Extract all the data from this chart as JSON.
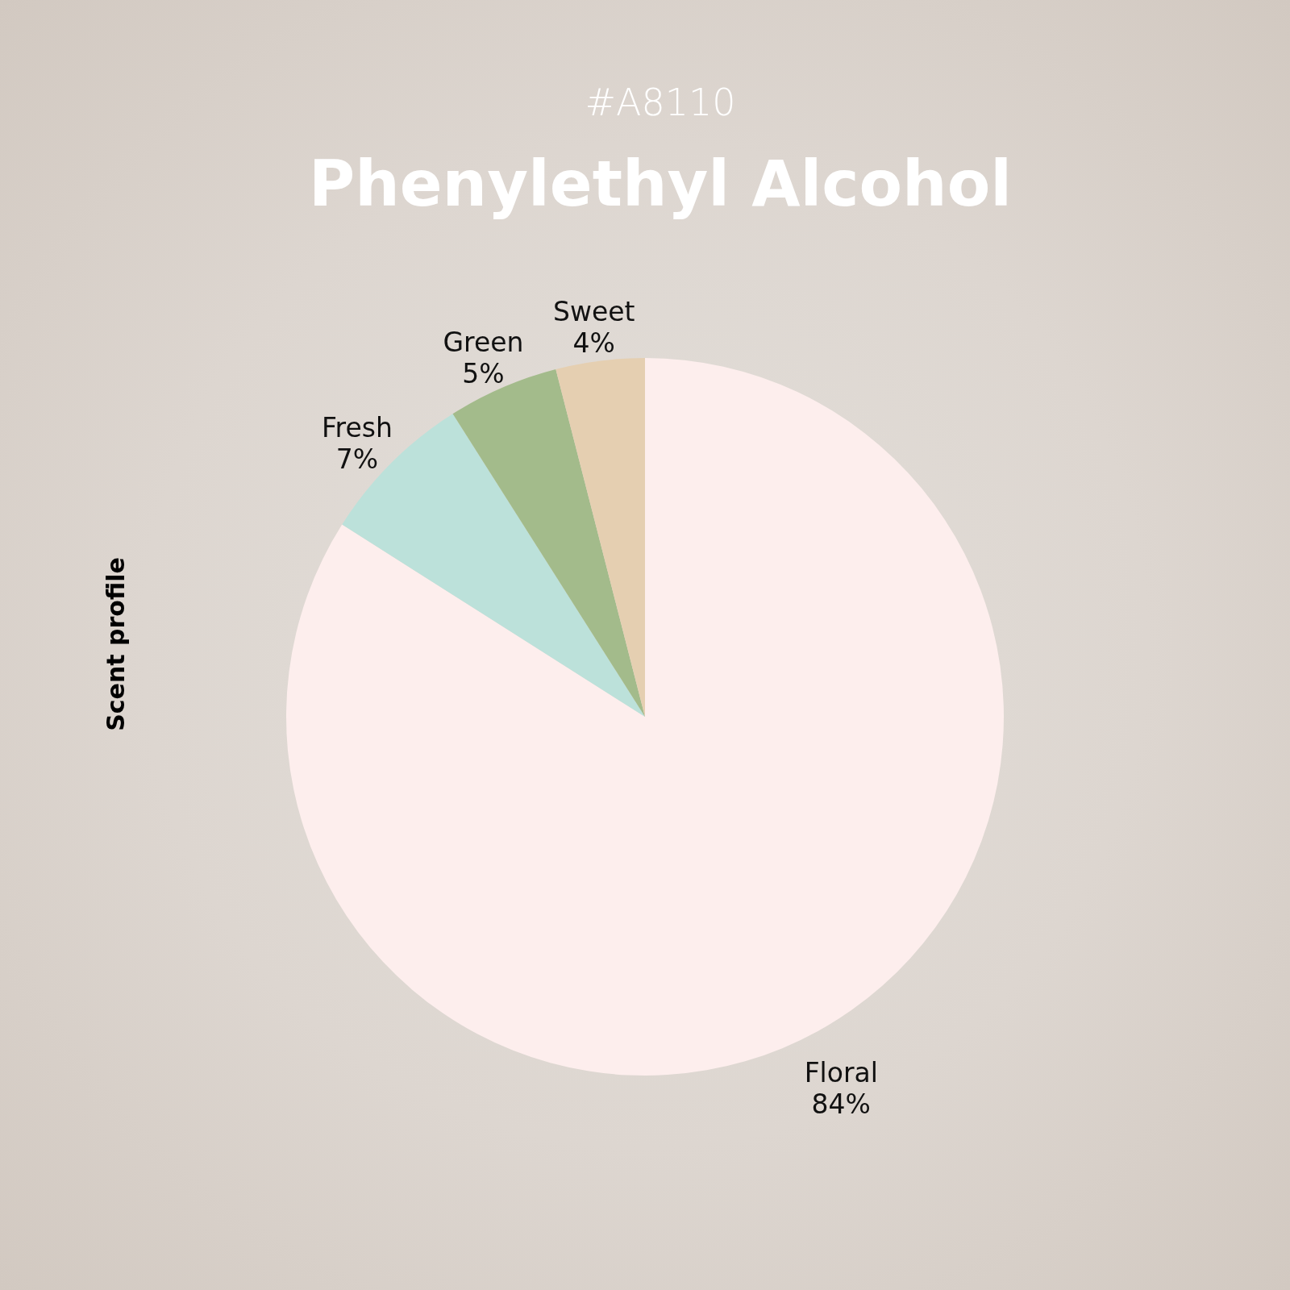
{
  "chart_data": {
    "type": "pie",
    "subtitle": "#A8110",
    "title": "Phenylethyl Alcohol",
    "ylabel": "Scent profile",
    "categories": [
      "Floral",
      "Fresh",
      "Green",
      "Sweet"
    ],
    "values": [
      84,
      7,
      5,
      4
    ],
    "colors": [
      "#fdeeed",
      "#bce1da",
      "#a3bb8b",
      "#e5cfb1"
    ],
    "value_labels": [
      "84%",
      "7%",
      "5%",
      "4%"
    ]
  }
}
